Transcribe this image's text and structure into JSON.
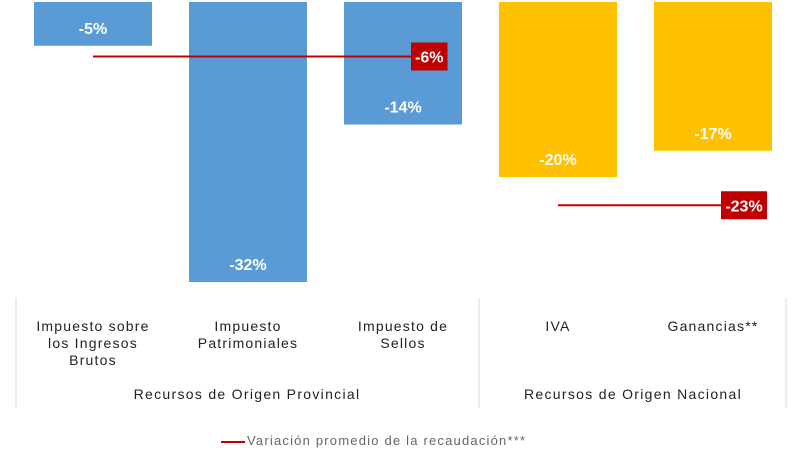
{
  "chart_data": {
    "type": "bar",
    "categories": [
      "Impuesto sobre\nlos Ingresos\nBrutos",
      "Impuesto\nPatrimoniales",
      "Impuesto de\nSellos",
      "IVA",
      "Ganancias**"
    ],
    "values": [
      -5,
      -32,
      -14,
      -20,
      -17
    ],
    "value_labels": [
      "-5%",
      "-32%",
      "-14%",
      "-20%",
      "-17%"
    ],
    "bar_colors": [
      "#5b9bd5",
      "#5b9bd5",
      "#5b9bd5",
      "#ffc000",
      "#ffc000"
    ],
    "groups": [
      {
        "label": "Recursos de Origen Provincial",
        "categories": [
          0,
          1,
          2
        ]
      },
      {
        "label": "Recursos de Origen Nacional",
        "categories": [
          3,
          4
        ]
      }
    ],
    "reference_lines": [
      {
        "group": 0,
        "value": -6,
        "label": "-6%"
      },
      {
        "group": 1,
        "value": -23,
        "label": "-23%"
      }
    ],
    "reference_color": "#c00000",
    "legend": {
      "label": "Variación promedio de la recaudación***"
    },
    "ylim": [
      -36,
      0
    ]
  }
}
